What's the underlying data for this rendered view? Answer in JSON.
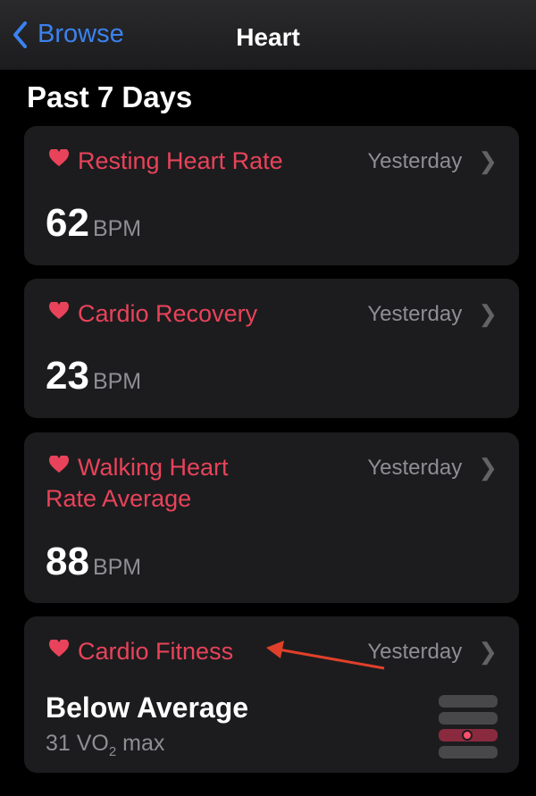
{
  "nav": {
    "back_label": "Browse",
    "title": "Heart"
  },
  "section_title": "Past 7 Days",
  "colors": {
    "accent": "#e8435a",
    "link": "#3b82f0",
    "annotation_arrow": "#e0402a"
  },
  "cards": [
    {
      "title": "Resting Heart Rate",
      "when": "Yesterday",
      "value": "62",
      "unit": "BPM"
    },
    {
      "title": "Cardio Recovery",
      "when": "Yesterday",
      "value": "23",
      "unit": "BPM"
    },
    {
      "title_line1": "Walking Heart",
      "title_line2": "Rate Average",
      "when": "Yesterday",
      "value": "88",
      "unit": "BPM"
    },
    {
      "title": "Cardio Fitness",
      "when": "Yesterday",
      "level": "Below Average",
      "value_prefix": "31 VO",
      "value_sub": "2",
      "value_suffix": " max",
      "gauge_levels": 4,
      "gauge_active_level_from_top": 3
    }
  ]
}
